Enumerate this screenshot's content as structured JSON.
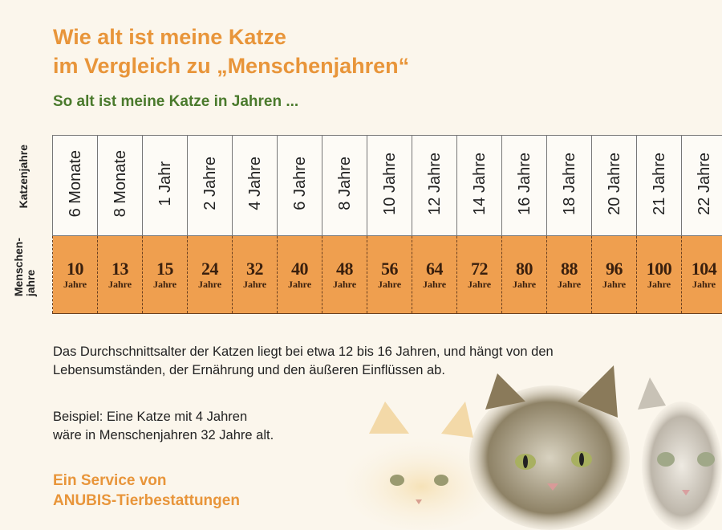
{
  "title_line1": "Wie alt ist meine Katze",
  "title_line2": "im Vergleich zu „Menschenjahren“",
  "subtitle": "So alt ist meine Katze in Jahren ...",
  "row_labels": {
    "cat": "Katzenjahre",
    "human1": "Menschen-",
    "human2": "jahre"
  },
  "table": {
    "cat_ages": [
      "6 Monate",
      "8 Monate",
      "1 Jahr",
      "2 Jahre",
      "4 Jahre",
      "6 Jahre",
      "8 Jahre",
      "10 Jahre",
      "12 Jahre",
      "14 Jahre",
      "16 Jahre",
      "18 Jahre",
      "20 Jahre",
      "21 Jahre",
      "22 Jahre"
    ],
    "human_ages": [
      "10",
      "13",
      "15",
      "24",
      "32",
      "40",
      "48",
      "56",
      "64",
      "72",
      "80",
      "88",
      "96",
      "100",
      "104"
    ],
    "unit": "Jahre"
  },
  "paragraph1_line1": "Das Durchschnittsalter der Katzen liegt bei etwa 12 bis 16 Jahren, und hängt von den",
  "paragraph1_line2": "Lebensumständen, der Ernährung und den äußeren Einflüssen ab.",
  "example_line1": "Beispiel: Eine Katze mit 4 Jahren",
  "example_line2": "wäre in Menschenjahren 32 Jahre alt.",
  "service_line1": "Ein Service von",
  "service_line2": "ANUBIS-Tierbestattungen",
  "colors": {
    "orange": "#ef9f4f",
    "title": "#e8953a",
    "green": "#4a7a2c"
  }
}
